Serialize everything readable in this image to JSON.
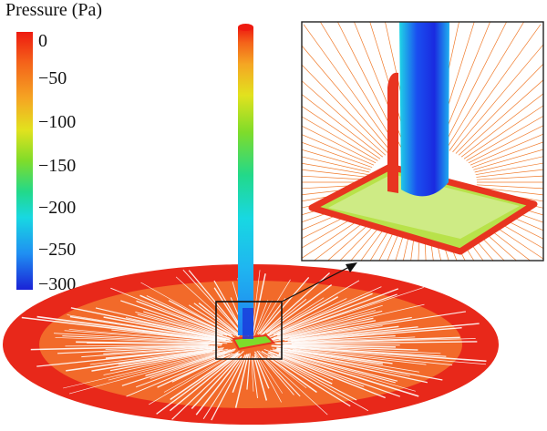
{
  "legend": {
    "title": "Pressure (Pa)",
    "ticks": [
      "0",
      "−50",
      "−100",
      "−150",
      "−200",
      "−250",
      "−300"
    ],
    "colors": [
      "#ee1a10",
      "#f4631a",
      "#f5a623",
      "#e2e21e",
      "#7fdc2a",
      "#22d98a",
      "#18d8e2",
      "#1f8ff2",
      "#1a22d6"
    ]
  },
  "scene": {
    "disk_outer_color": "#e8281a",
    "disk_inner_color": "#f26a2a",
    "streamline_color": "#ffffff",
    "inset_border_color": "#222222"
  }
}
